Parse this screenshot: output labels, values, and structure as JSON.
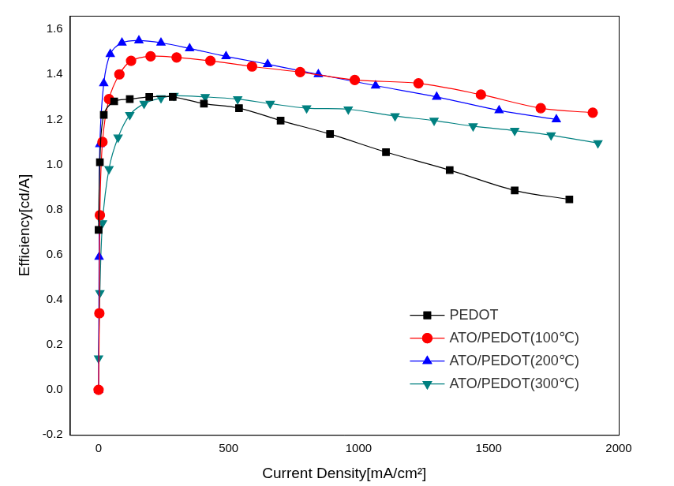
{
  "chart_data": {
    "type": "line",
    "x_label": "Current Density[mA/cm²]",
    "y_label": "Efficiency[cd/A]",
    "xlim": [
      -110,
      2000
    ],
    "xticks": [
      0,
      500,
      1000,
      1500,
      2000
    ],
    "ylim": [
      -0.2,
      1.66
    ],
    "yticks": [
      -0.2,
      {
        "value": 0,
        "label": "0.0"
      },
      0.2,
      0.4,
      0.6,
      0.8,
      {
        "value": 1,
        "label": "1.0"
      },
      1.2,
      1.4,
      1.6
    ],
    "grid": false,
    "legend": "lower right",
    "series": [
      {
        "name": "PEDOT",
        "color": "#000000",
        "marker": "square",
        "line_style": "solid",
        "x": [
          0,
          5,
          20,
          60,
          120,
          195,
          285,
          405,
          540,
          700,
          890,
          1105,
          1350,
          1600,
          1810
        ],
        "values": [
          0.71,
          1.01,
          1.22,
          1.28,
          1.29,
          1.3,
          1.3,
          1.27,
          1.25,
          1.195,
          1.135,
          1.055,
          0.975,
          0.885,
          0.845
        ]
      },
      {
        "name": "ATO/PEDOT(100℃)",
        "color": "#ff0000",
        "marker": "circle",
        "line_style": "solid",
        "x": [
          0,
          3,
          5,
          15,
          40,
          80,
          125,
          200,
          300,
          430,
          590,
          775,
          985,
          1230,
          1470,
          1700,
          1900
        ],
        "values": [
          0,
          0.34,
          0.775,
          1.1,
          1.29,
          1.4,
          1.46,
          1.48,
          1.475,
          1.46,
          1.435,
          1.41,
          1.375,
          1.36,
          1.31,
          1.25,
          1.23
        ]
      },
      {
        "name": "ATO/PEDOT(200℃)",
        "color": "#0000ff",
        "marker": "triangle",
        "line_style": "solid",
        "x": [
          0,
          2,
          5,
          20,
          45,
          90,
          155,
          240,
          350,
          490,
          650,
          845,
          1065,
          1300,
          1540,
          1760
        ],
        "values": [
          0,
          0.59,
          1.09,
          1.36,
          1.49,
          1.54,
          1.55,
          1.54,
          1.515,
          1.48,
          1.445,
          1.4,
          1.35,
          1.3,
          1.24,
          1.2
        ]
      },
      {
        "name": "ATO/PEDOT(300℃)",
        "color": "#008080",
        "marker": "triangle_down",
        "line_style": "solid",
        "x": [
          0,
          5,
          15,
          40,
          75,
          120,
          175,
          240,
          290,
          410,
          535,
          660,
          800,
          960,
          1140,
          1290,
          1440,
          1600,
          1740,
          1920
        ],
        "values": [
          0.14,
          0.43,
          0.74,
          0.98,
          1.12,
          1.22,
          1.27,
          1.295,
          1.305,
          1.3,
          1.29,
          1.27,
          1.25,
          1.245,
          1.215,
          1.195,
          1.17,
          1.15,
          1.13,
          1.095
        ]
      }
    ]
  }
}
